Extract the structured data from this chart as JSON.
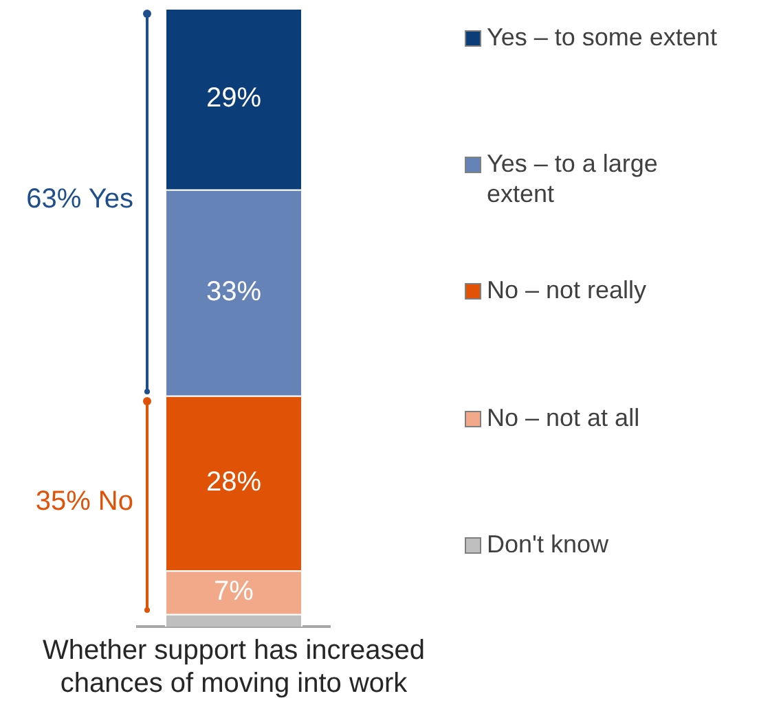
{
  "chart_data": {
    "type": "bar",
    "stacked": true,
    "categories": [
      "Whether support has increased chances of moving into work"
    ],
    "series": [
      {
        "name": "Don't know",
        "color": "#bfbfbf",
        "values": [
          2
        ],
        "value_labels": [
          null
        ]
      },
      {
        "name": "No – not at all",
        "color": "#f2a98a",
        "values": [
          7
        ],
        "value_labels": [
          "7%"
        ]
      },
      {
        "name": "No – not really",
        "color": "#e05206",
        "values": [
          28
        ],
        "value_labels": [
          "28%"
        ]
      },
      {
        "name": "Yes – to a large extent",
        "color": "#6683b8",
        "values": [
          33
        ],
        "value_labels": [
          "33%"
        ]
      },
      {
        "name": "Yes – to some extent",
        "color": "#0b3d78",
        "values": [
          29
        ],
        "value_labels": [
          "29%"
        ]
      }
    ],
    "annotations": [
      "63% Yes",
      "35% No"
    ],
    "legend": "right",
    "grid": false
  }
}
